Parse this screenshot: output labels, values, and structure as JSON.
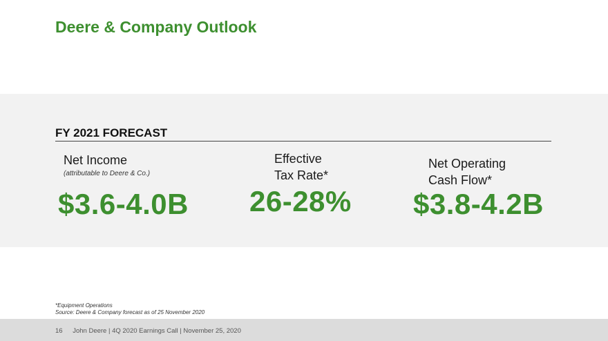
{
  "slide": {
    "title": "Deere & Company Outlook",
    "section_heading": "FY 2021 FORECAST"
  },
  "metrics": [
    {
      "label_lines": [
        "Net Income"
      ],
      "sublabel": "(attributable to Deere & Co.)",
      "value": "$3.6-4.0B"
    },
    {
      "label_lines": [
        "Effective",
        "Tax Rate*"
      ],
      "value": "26-28%"
    },
    {
      "label_lines": [
        "Net Operating",
        "Cash Flow*"
      ],
      "value": "$3.8-4.2B"
    }
  ],
  "footnotes": [
    "*Equipment Operations",
    "Source: Deere & Company forecast as of 25 November 2020"
  ],
  "footer": {
    "page_number": "16",
    "text": "John Deere | 4Q 2020 Earnings Call | November 25, 2020"
  },
  "colors": {
    "accent_green": "#3d8f2f",
    "band_gray": "#f2f2f2",
    "footer_gray": "#dcdcdc"
  }
}
